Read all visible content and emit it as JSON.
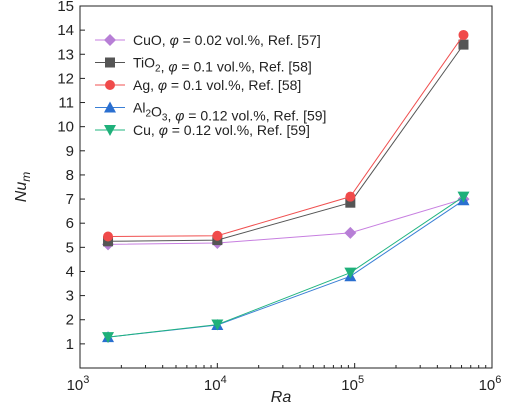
{
  "chart_data": {
    "type": "line",
    "title": "",
    "xlabel": "Ra",
    "ylabel_base": "Nu",
    "ylabel_sub": "m",
    "x_scale": "log",
    "xlim": [
      1000,
      1000000
    ],
    "ylim": [
      0,
      15
    ],
    "x_ticks": [
      {
        "value": 1000,
        "base": "10",
        "exp": "3"
      },
      {
        "value": 10000,
        "base": "10",
        "exp": "4"
      },
      {
        "value": 100000,
        "base": "10",
        "exp": "5"
      },
      {
        "value": 1000000,
        "base": "10",
        "exp": "6"
      }
    ],
    "y_ticks": [
      1,
      2,
      3,
      4,
      5,
      6,
      7,
      8,
      9,
      10,
      11,
      12,
      13,
      14,
      15
    ],
    "grid": false,
    "legend_position": "top-left",
    "series": [
      {
        "name": "CuO, φ = 0.02 vol.%, Ref. [57]",
        "legend": [
          {
            "t": "CuO, "
          },
          {
            "t": "φ",
            "i": true
          },
          {
            "t": " = 0.02 vol.%, Ref. [57]"
          }
        ],
        "color": "#c77fe0",
        "marker_color": "#b77fd6",
        "marker": "diamond",
        "x": [
          1600,
          10000,
          93000,
          620000
        ],
        "y": [
          5.12,
          5.18,
          5.6,
          7.0
        ]
      },
      {
        "name": "TiO2, φ = 0.1 vol.%, Ref. [58]",
        "legend": [
          {
            "t": "TiO"
          },
          {
            "t": "2",
            "sub": true
          },
          {
            "t": ", "
          },
          {
            "t": "φ",
            "i": true
          },
          {
            "t": " = 0.1 vol.%, Ref. [58]"
          }
        ],
        "color": "#555555",
        "marker_color": "#555555",
        "marker": "square",
        "x": [
          1600,
          10000,
          93000,
          620000
        ],
        "y": [
          5.25,
          5.3,
          6.85,
          13.4
        ]
      },
      {
        "name": "Ag, φ = 0.1 vol.%, Ref. [58]",
        "legend": [
          {
            "t": "Ag, "
          },
          {
            "t": "φ",
            "i": true
          },
          {
            "t": " = 0.1 vol.%, Ref. [58]"
          }
        ],
        "color": "#f05050",
        "marker_color": "#f04a4a",
        "marker": "circle",
        "x": [
          1600,
          10000,
          93000,
          620000
        ],
        "y": [
          5.45,
          5.48,
          7.1,
          13.8
        ]
      },
      {
        "name": "Al2O3, φ = 0.12 vol.%, Ref. [59]",
        "legend": [
          {
            "t": "Al"
          },
          {
            "t": "2",
            "sub": true
          },
          {
            "t": "O"
          },
          {
            "t": "3",
            "sub": true
          },
          {
            "t": ", "
          },
          {
            "t": "φ",
            "i": true
          },
          {
            "t": " = 0.12 vol.%, Ref. [59]"
          }
        ],
        "color": "#3a7fd5",
        "marker_color": "#2a6fd0",
        "marker": "triangle-up",
        "x": [
          1600,
          10000,
          93000,
          620000
        ],
        "y": [
          1.28,
          1.78,
          3.8,
          6.95
        ]
      },
      {
        "name": "Cu, φ = 0.12 vol.%, Ref. [59]",
        "legend": [
          {
            "t": "Cu, "
          },
          {
            "t": "φ",
            "i": true
          },
          {
            "t": " = 0.12 vol.%, Ref. [59]"
          }
        ],
        "color": "#20b47f",
        "marker_color": "#1fb07a",
        "marker": "triangle-down",
        "x": [
          1600,
          10000,
          93000,
          620000
        ],
        "y": [
          1.28,
          1.8,
          3.95,
          7.1
        ]
      }
    ]
  }
}
